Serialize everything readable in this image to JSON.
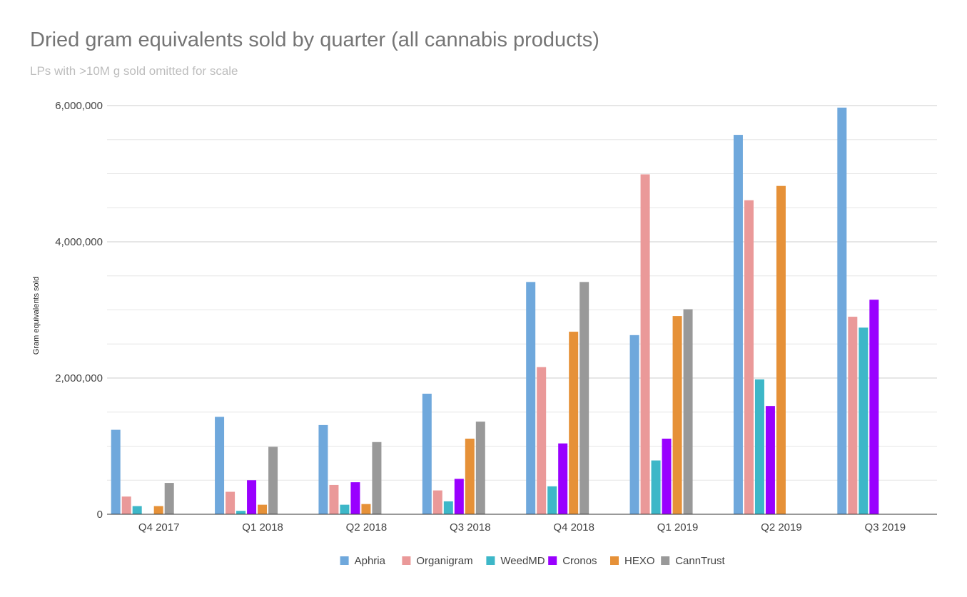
{
  "chart_data": {
    "type": "bar",
    "title": "Dried gram equivalents sold by quarter (all cannabis products)",
    "subtitle": "LPs with >10M g sold omitted for scale",
    "xlabel": "",
    "ylabel": "Gram equivalents sold",
    "ylim": [
      0,
      6000000
    ],
    "yticks": [
      0,
      2000000,
      4000000,
      6000000
    ],
    "ytick_labels": [
      "0",
      "2,000,000",
      "4,000,000",
      "6,000,000"
    ],
    "categories": [
      "Q4 2017",
      "Q1 2018",
      "Q2 2018",
      "Q3 2018",
      "Q4 2018",
      "Q1 2019",
      "Q2 2019",
      "Q3 2019"
    ],
    "grid": true,
    "legend_position": "bottom",
    "series": [
      {
        "name": "Aphria",
        "color": "#6fa8dc",
        "values": [
          1240000,
          1430000,
          1310000,
          1770000,
          3410000,
          2630000,
          5570000,
          5970000
        ]
      },
      {
        "name": "Organigram",
        "color": "#ea9999",
        "values": [
          260000,
          330000,
          430000,
          350000,
          2160000,
          4990000,
          4610000,
          2900000
        ]
      },
      {
        "name": "WeedMD",
        "color": "#3db7c8",
        "values": [
          120000,
          50000,
          140000,
          190000,
          410000,
          790000,
          1980000,
          2740000
        ]
      },
      {
        "name": "Cronos",
        "color": "#9900ff",
        "values": [
          null,
          500000,
          470000,
          520000,
          1040000,
          1110000,
          1590000,
          3150000
        ]
      },
      {
        "name": "HEXO",
        "color": "#e69138",
        "values": [
          120000,
          140000,
          150000,
          1110000,
          2680000,
          2910000,
          4820000,
          null
        ]
      },
      {
        "name": "CannTrust",
        "color": "#999999",
        "values": [
          460000,
          990000,
          1060000,
          1360000,
          3410000,
          3010000,
          null,
          null
        ]
      }
    ]
  }
}
